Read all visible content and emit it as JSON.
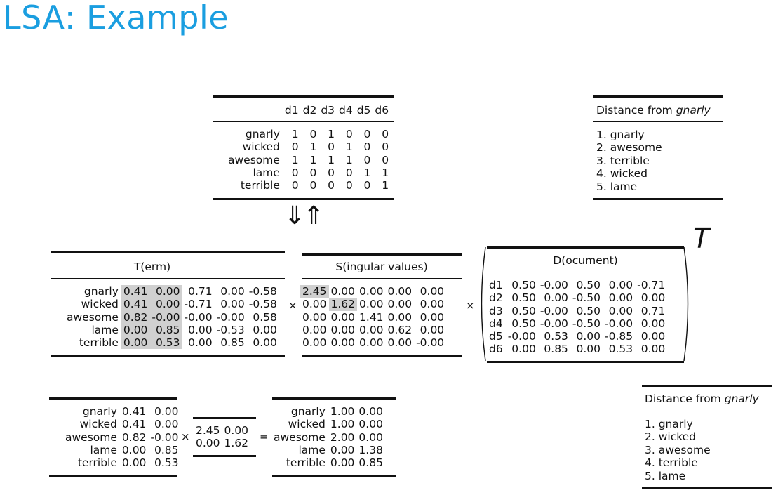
{
  "slide_title": "LSA: Example",
  "doc_matrix": {
    "headers": [
      "d1",
      "d2",
      "d3",
      "d4",
      "d5",
      "d6"
    ],
    "rows": [
      {
        "term": "gnarly",
        "values": [
          "1",
          "0",
          "1",
          "0",
          "0",
          "0"
        ]
      },
      {
        "term": "wicked",
        "values": [
          "0",
          "1",
          "0",
          "1",
          "0",
          "0"
        ]
      },
      {
        "term": "awesome",
        "values": [
          "1",
          "1",
          "1",
          "1",
          "0",
          "0"
        ]
      },
      {
        "term": "lame",
        "values": [
          "0",
          "0",
          "0",
          "0",
          "1",
          "1"
        ]
      },
      {
        "term": "terrible",
        "values": [
          "0",
          "0",
          "0",
          "0",
          "0",
          "1"
        ]
      }
    ]
  },
  "arrows": "⇓⇑",
  "distance_top": {
    "title_prefix": "Distance from ",
    "title_word": "gnarly",
    "items": [
      "1. gnarly",
      "2. awesome",
      "3. terrible",
      "4. wicked",
      "5. lame"
    ]
  },
  "term_matrix": {
    "caption": "T(erm)",
    "rows": [
      {
        "term": "gnarly",
        "values": [
          "0.41",
          "0.00",
          "0.71",
          "0.00",
          "-0.58"
        ]
      },
      {
        "term": "wicked",
        "values": [
          "0.41",
          "0.00",
          "-0.71",
          "0.00",
          "-0.58"
        ]
      },
      {
        "term": "awesome",
        "values": [
          "0.82",
          "-0.00",
          "-0.00",
          "-0.00",
          "0.58"
        ]
      },
      {
        "term": "lame",
        "values": [
          "0.00",
          "0.85",
          "0.00",
          "-0.53",
          "0.00"
        ]
      },
      {
        "term": "terrible",
        "values": [
          "0.00",
          "0.53",
          "0.00",
          "0.85",
          "0.00"
        ]
      }
    ]
  },
  "singular_matrix": {
    "caption": "S(ingular values)",
    "rows": [
      [
        "2.45",
        "0.00",
        "0.00",
        "0.00",
        "0.00"
      ],
      [
        "0.00",
        "1.62",
        "0.00",
        "0.00",
        "0.00"
      ],
      [
        "0.00",
        "0.00",
        "1.41",
        "0.00",
        "0.00"
      ],
      [
        "0.00",
        "0.00",
        "0.00",
        "0.62",
        "0.00"
      ],
      [
        "0.00",
        "0.00",
        "0.00",
        "0.00",
        "-0.00"
      ]
    ]
  },
  "document_matrix": {
    "caption": "D(ocument)",
    "transpose": "T",
    "rows": [
      {
        "doc": "d1",
        "values": [
          "0.50",
          "-0.00",
          "0.50",
          "0.00",
          "-0.71"
        ]
      },
      {
        "doc": "d2",
        "values": [
          "0.50",
          "0.00",
          "-0.50",
          "0.00",
          "0.00"
        ]
      },
      {
        "doc": "d3",
        "values": [
          "0.50",
          "-0.00",
          "0.50",
          "0.00",
          "0.71"
        ]
      },
      {
        "doc": "d4",
        "values": [
          "0.50",
          "-0.00",
          "-0.50",
          "-0.00",
          "0.00"
        ]
      },
      {
        "doc": "d5",
        "values": [
          "-0.00",
          "0.53",
          "0.00",
          "-0.85",
          "0.00"
        ]
      },
      {
        "doc": "d6",
        "values": [
          "0.00",
          "0.85",
          "0.00",
          "0.53",
          "0.00"
        ]
      }
    ]
  },
  "operators": {
    "times": "×",
    "equals": "="
  },
  "reduced_term": {
    "rows": [
      {
        "term": "gnarly",
        "values": [
          "0.41",
          "0.00"
        ]
      },
      {
        "term": "wicked",
        "values": [
          "0.41",
          "0.00"
        ]
      },
      {
        "term": "awesome",
        "values": [
          "0.82",
          "-0.00"
        ]
      },
      {
        "term": "lame",
        "values": [
          "0.00",
          "0.85"
        ]
      },
      {
        "term": "terrible",
        "values": [
          "0.00",
          "0.53"
        ]
      }
    ]
  },
  "reduced_singular": {
    "rows": [
      [
        "2.45",
        "0.00"
      ],
      [
        "0.00",
        "1.62"
      ]
    ]
  },
  "reduced_result": {
    "rows": [
      {
        "term": "gnarly",
        "values": [
          "1.00",
          "0.00"
        ]
      },
      {
        "term": "wicked",
        "values": [
          "1.00",
          "0.00"
        ]
      },
      {
        "term": "awesome",
        "values": [
          "2.00",
          "0.00"
        ]
      },
      {
        "term": "lame",
        "values": [
          "0.00",
          "1.38"
        ]
      },
      {
        "term": "terrible",
        "values": [
          "0.00",
          "0.85"
        ]
      }
    ]
  },
  "distance_bottom": {
    "title_prefix": "Distance from ",
    "title_word": "gnarly",
    "items": [
      "1. gnarly",
      "2. wicked",
      "3. awesome",
      "4. terrible",
      "5. lame"
    ]
  }
}
